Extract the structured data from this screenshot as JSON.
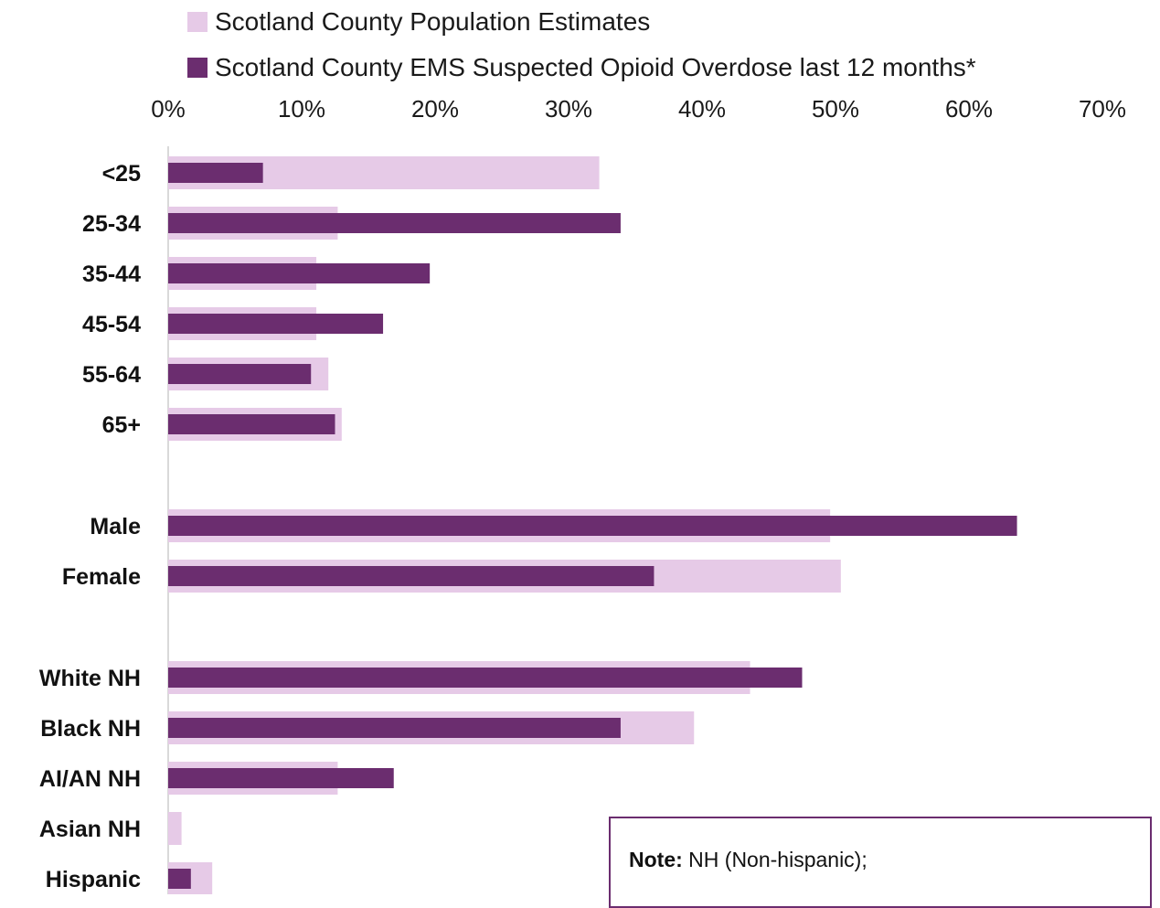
{
  "chart_data": {
    "type": "bar",
    "orientation": "horizontal",
    "categories": [
      "<25",
      "25-34",
      "35-44",
      "45-54",
      "55-64",
      "65+",
      "Male",
      "Female",
      "White NH",
      "Black NH",
      "AI/AN NH",
      "Asian NH",
      "Hispanic"
    ],
    "series": [
      {
        "name": "Scotland County Population Estimates",
        "color": "#e6cae7",
        "values": [
          32.3,
          12.7,
          11.1,
          11.1,
          12.0,
          13.0,
          49.6,
          50.4,
          43.6,
          39.4,
          12.7,
          1.0,
          3.3
        ]
      },
      {
        "name": "Scotland County EMS Suspected Opioid Overdose last 12 months*",
        "color": "#6b2d6f",
        "values": [
          7.1,
          33.9,
          19.6,
          16.1,
          10.7,
          12.5,
          63.6,
          36.4,
          47.5,
          33.9,
          16.9,
          0,
          1.7
        ]
      }
    ],
    "x_ticks": [
      "0%",
      "10%",
      "20%",
      "30%",
      "40%",
      "50%",
      "60%",
      "70%"
    ],
    "xlim": [
      0,
      70
    ],
    "axis_position": "top",
    "legend_position": "top",
    "grid": false
  },
  "note": {
    "label": "Note:",
    "text": " NH (Non-hispanic);"
  }
}
